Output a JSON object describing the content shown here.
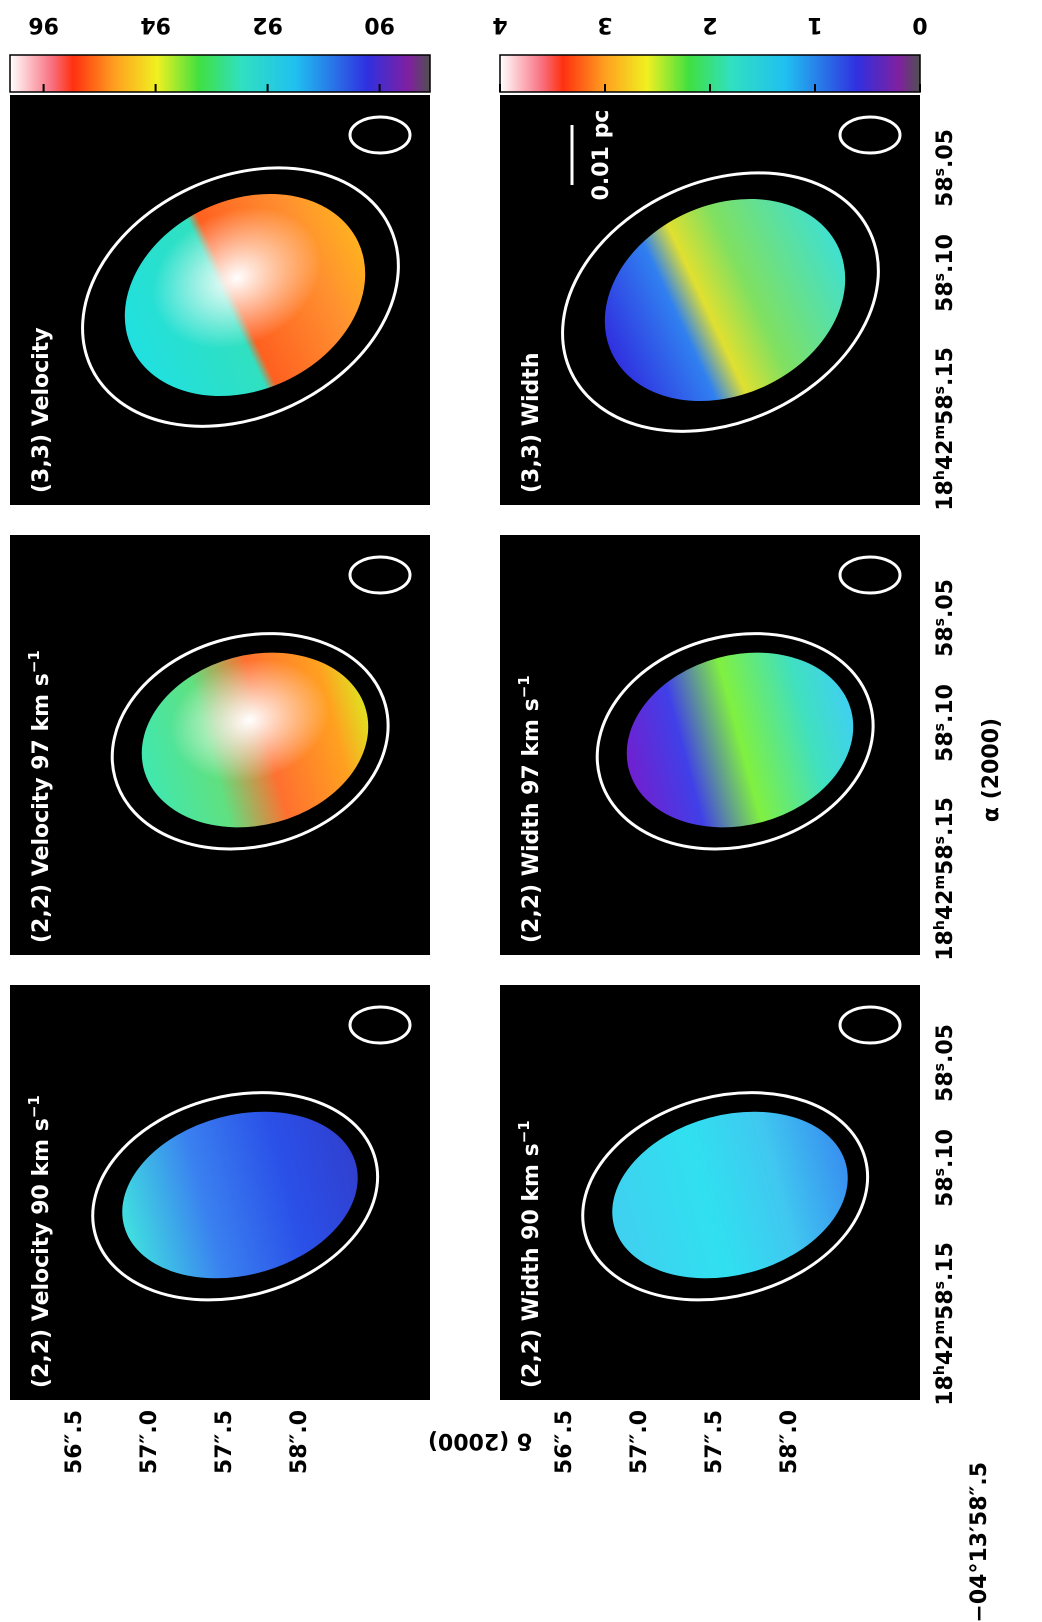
{
  "panels": [
    {
      "title": "(2,2) Velocity 90 km s",
      "title_sup": "−1"
    },
    {
      "title": "(2,2) Velocity 97 km s",
      "title_sup": "−1"
    },
    {
      "title": "(3,3) Velocity"
    },
    {
      "title": "(2,2) Width 90 km s",
      "title_sup": "−1"
    },
    {
      "title": "(2,2) Width 97 km s",
      "title_sup": "−1"
    },
    {
      "title": "(3,3) Width",
      "scale_bar": "0.01 pc"
    }
  ],
  "colorbars": [
    {
      "lim": [
        89.1,
        96.6
      ],
      "ticks": [
        90,
        92,
        94,
        96
      ]
    },
    {
      "lim": [
        0,
        4
      ],
      "ticks": [
        0,
        1,
        2,
        3,
        4
      ]
    }
  ],
  "dec_ticks": [
    [
      "56″.5",
      "57″.0",
      "57″.5",
      "58″.0"
    ],
    [
      "56″.5",
      "57″.0",
      "57″.5",
      "58″.0",
      "−04°13′58″.5"
    ]
  ],
  "ra_ticks": [
    "18h42m58s.15",
    "58s.10",
    "58s.05"
  ],
  "x_label": "α (2000)",
  "y_label": "δ (2000)"
}
